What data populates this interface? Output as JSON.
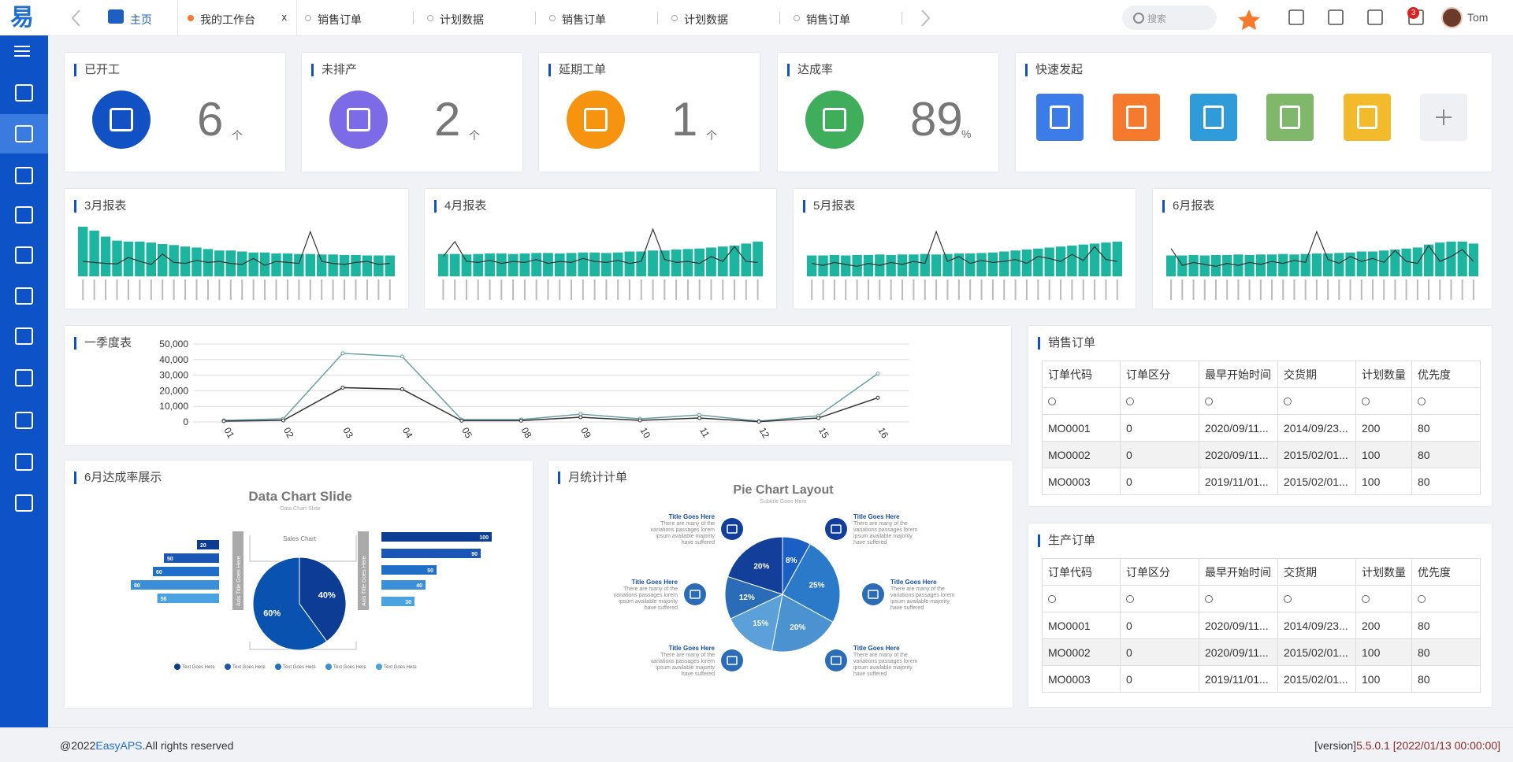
{
  "header": {
    "tabs": [
      "主页",
      "我的工作台",
      "销售订单",
      "计划数据",
      "销售订单",
      "计划数据",
      "销售订单"
    ],
    "search": "搜索",
    "notifications": 3,
    "user": "Tom"
  },
  "stats": [
    {
      "title": "已开工",
      "value": 6,
      "unit": "个",
      "color": "#1251c4"
    },
    {
      "title": "未排产",
      "value": 2,
      "unit": "个",
      "color": "#7b6be6"
    },
    {
      "title": "延期工单",
      "value": 1,
      "unit": "个",
      "color": "#f7940f"
    },
    {
      "title": "达成率",
      "value": 89,
      "unit": "%",
      "color": "#3fae5a"
    }
  ],
  "quick": {
    "title": "快速发起",
    "colors": [
      "#3b7ce8",
      "#f57a2e",
      "#2f9bd9",
      "#7fb86b",
      "#f3bb2c",
      "#eef0f3"
    ]
  },
  "monthly": [
    {
      "type": "bar",
      "title": "3月报表",
      "ylim": [
        0,
        100
      ],
      "bar_color": "#1bb5a0",
      "line_color": "#333333",
      "bars": [
        100,
        92,
        80,
        72,
        70,
        70,
        68,
        65,
        63,
        60,
        58,
        55,
        52,
        52,
        50,
        48,
        48,
        46,
        46,
        45,
        45,
        44,
        44,
        43,
        43,
        42,
        42,
        42
      ],
      "line": [
        30,
        28,
        26,
        25,
        38,
        30,
        24,
        45,
        28,
        26,
        32,
        28,
        30,
        26,
        24,
        36,
        22,
        30,
        28,
        26,
        90,
        30,
        26,
        24,
        28,
        30,
        24,
        26
      ]
    },
    {
      "type": "bar",
      "title": "4月报表",
      "ylim": [
        0,
        100
      ],
      "bar_color": "#1bb5a0",
      "line_color": "#333333",
      "bars": [
        45,
        45,
        44,
        45,
        46,
        46,
        45,
        46,
        47,
        47,
        46,
        47,
        48,
        48,
        47,
        48,
        50,
        50,
        52,
        52,
        54,
        55,
        56,
        58,
        60,
        62,
        66,
        70
      ],
      "line": [
        40,
        70,
        30,
        28,
        32,
        26,
        30,
        28,
        34,
        26,
        30,
        28,
        36,
        30,
        28,
        32,
        26,
        30,
        95,
        34,
        28,
        30,
        26,
        40,
        30,
        60,
        30,
        28
      ]
    },
    {
      "type": "bar",
      "title": "5月报表",
      "ylim": [
        0,
        100
      ],
      "bar_color": "#1bb5a0",
      "line_color": "#333333",
      "bars": [
        42,
        42,
        43,
        42,
        43,
        43,
        44,
        43,
        44,
        44,
        45,
        44,
        45,
        46,
        46,
        47,
        48,
        50,
        52,
        54,
        56,
        58,
        60,
        62,
        64,
        66,
        68,
        70
      ],
      "line": [
        26,
        22,
        28,
        24,
        20,
        26,
        22,
        28,
        24,
        30,
        26,
        90,
        30,
        40,
        26,
        32,
        28,
        30,
        34,
        26,
        40,
        36,
        30,
        44,
        32,
        60,
        34,
        30
      ]
    },
    {
      "type": "bar",
      "title": "6月报表",
      "ylim": [
        0,
        100
      ],
      "bar_color": "#1bb5a0",
      "line_color": "#333333",
      "bars": [
        42,
        42,
        43,
        42,
        43,
        43,
        44,
        43,
        44,
        44,
        45,
        44,
        45,
        46,
        46,
        47,
        48,
        50,
        50,
        52,
        54,
        56,
        58,
        64,
        68,
        70,
        70,
        66
      ],
      "line": [
        56,
        22,
        28,
        24,
        20,
        26,
        22,
        28,
        24,
        30,
        26,
        32,
        28,
        90,
        34,
        26,
        40,
        30,
        36,
        28,
        52,
        30,
        26,
        62,
        30,
        40,
        54,
        30
      ]
    }
  ],
  "quarter": {
    "type": "line",
    "title": "一季度表",
    "categories": [
      "01",
      "02",
      "03",
      "04",
      "05",
      "08",
      "09",
      "10",
      "11",
      "12",
      "15",
      "16"
    ],
    "series": [
      {
        "color": "#6a9fa6",
        "values": [
          1000,
          2000,
          44000,
          42000,
          1500,
          1500,
          5000,
          2000,
          4500,
          500,
          4000,
          31000
        ]
      },
      {
        "color": "#333333",
        "values": [
          500,
          1000,
          22000,
          21000,
          800,
          800,
          3000,
          1000,
          2500,
          200,
          2500,
          15500
        ]
      }
    ],
    "ylim": [
      0,
      50000
    ],
    "yticks": [
      0,
      {
        "value": 10000,
        "label": "10,000"
      },
      {
        "value": 20000,
        "label": "20,000"
      },
      {
        "value": 30000,
        "label": "30,000"
      },
      {
        "value": 40000,
        "label": "40,000"
      },
      {
        "value": 50000,
        "label": "50,000"
      }
    ],
    "grid": true
  },
  "sales_orders": {
    "title": "销售订单",
    "columns": [
      "订单代码",
      "订单区分",
      "最早开始时间",
      "交货期",
      "计划数量",
      "优先度"
    ],
    "rows": [
      [
        "MO0001",
        "0",
        "2020/09/11...",
        "2014/09/23...",
        "200",
        "80"
      ],
      [
        "MO0002",
        "0",
        "2020/09/11...",
        "2015/02/01...",
        "100",
        "80"
      ],
      [
        "MO0003",
        "0",
        "2019/11/01...",
        "2015/02/01...",
        "100",
        "80"
      ]
    ]
  },
  "production_orders": {
    "title": "生产订单",
    "columns": [
      "订单代码",
      "订单区分",
      "最早开始时间",
      "交货期",
      "计划数量",
      "优先度"
    ],
    "rows": [
      [
        "MO0001",
        "0",
        "2020/09/11...",
        "2014/09/23...",
        "200",
        "80"
      ],
      [
        "MO0002",
        "0",
        "2020/09/11...",
        "2015/02/01...",
        "100",
        "80"
      ],
      [
        "MO0003",
        "0",
        "2019/11/01...",
        "2015/02/01...",
        "100",
        "80"
      ]
    ]
  },
  "rate_panel": {
    "title": "6月达成率展示",
    "slide_title": "Data Chart Slide",
    "slide_subtitle": "Data Chart Slide",
    "center_label": "Sales Chart",
    "axis_labels": [
      "Axis Title Goes Here",
      "Axis Title Goes Here"
    ],
    "xlim": [
      0,
      100
    ],
    "colors": [
      "#0d3c94",
      "#1a56b8",
      "#1f6ec8",
      "#3b8fd8",
      "#4aa3e0"
    ],
    "left_bars": [
      20,
      50,
      60,
      80,
      56
    ],
    "right_bars": [
      100,
      90,
      50,
      40,
      30
    ],
    "pie": {
      "type": "pie",
      "values": [
        40,
        60
      ],
      "value_labels": [
        "40%",
        "60%"
      ],
      "colors": [
        "#0d3c94",
        "#0a52b0"
      ]
    },
    "legend": [
      "Text Goes Here",
      "Text Goes Here",
      "Text Goes Here",
      "Text Goes Here",
      "Text Goes Here"
    ]
  },
  "month_panel": {
    "title": "月统计计单",
    "slide_title": "Pie Chart Layout",
    "slide_subtitle": "Subtitle Goes Here",
    "pie": {
      "type": "pie",
      "values": [
        8,
        25,
        20,
        15,
        12,
        20
      ],
      "value_labels": [
        "8%",
        "25%",
        "20%",
        "15%",
        "12%",
        "20%"
      ],
      "colors": [
        "#1a5fc4",
        "#2b79c9",
        "#4a93d0",
        "#5ba0d8",
        "#2b6cb8",
        "#123f99"
      ]
    },
    "callouts": [
      {
        "title": "Title Goes Here",
        "text": "There are many of the variations passages lorem ipsum available majority have suffered"
      },
      {
        "title": "Title Goes Here",
        "text": "There are many of the variations passages lorem ipsum available majority have suffered"
      },
      {
        "title": "Title Goes Here",
        "text": "There are many of the variations passages lorem ipsum available majority have suffered"
      },
      {
        "title": "Title Goes Here",
        "text": "There are many of the variations passages lorem ipsum available majority have suffered"
      },
      {
        "title": "Title Goes Here",
        "text": "There are many of the variations passages lorem ipsum available majority have suffered"
      },
      {
        "title": "Title Goes Here",
        "text": "There are many of the variations passages lorem ipsum available majority have suffered"
      }
    ]
  },
  "footer": {
    "copyright_prefix": "@2022",
    "brand": "EasyAPS",
    "copyright_suffix": ".All rights reserved",
    "version_label": "[version]",
    "version": "5.5.0.1 [2022/01/13 00:00:00]"
  }
}
